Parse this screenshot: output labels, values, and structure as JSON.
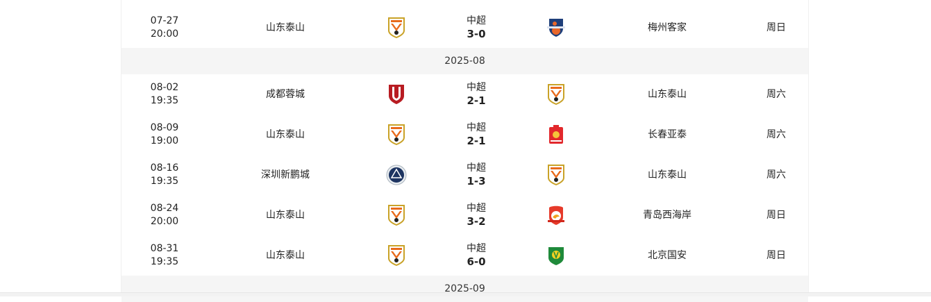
{
  "sections": [
    {
      "month": null,
      "matches": [
        {
          "date": "07-27",
          "time": "20:00",
          "home": "山东泰山",
          "home_logo": "shandong",
          "league": "中超",
          "score": "3-0",
          "away_logo": "meizhou",
          "away": "梅州客家",
          "weekday": "周日"
        }
      ]
    },
    {
      "month": "2025-08",
      "matches": [
        {
          "date": "08-02",
          "time": "19:35",
          "home": "成都蓉城",
          "home_logo": "chengdu",
          "league": "中超",
          "score": "2-1",
          "away_logo": "shandong",
          "away": "山东泰山",
          "weekday": "周六"
        },
        {
          "date": "08-09",
          "time": "19:00",
          "home": "山东泰山",
          "home_logo": "shandong",
          "league": "中超",
          "score": "2-1",
          "away_logo": "changchun",
          "away": "长春亚泰",
          "weekday": "周六"
        },
        {
          "date": "08-16",
          "time": "19:35",
          "home": "深圳新鹏城",
          "home_logo": "shenzhen",
          "league": "中超",
          "score": "1-3",
          "away_logo": "shandong",
          "away": "山东泰山",
          "weekday": "周六"
        },
        {
          "date": "08-24",
          "time": "20:00",
          "home": "山东泰山",
          "home_logo": "shandong",
          "league": "中超",
          "score": "3-2",
          "away_logo": "qingdao",
          "away": "青岛西海岸",
          "weekday": "周日"
        },
        {
          "date": "08-31",
          "time": "19:35",
          "home": "山东泰山",
          "home_logo": "shandong",
          "league": "中超",
          "score": "6-0",
          "away_logo": "beijing",
          "away": "北京国安",
          "weekday": "周日"
        }
      ]
    },
    {
      "month": "2025-09",
      "matches": []
    }
  ]
}
